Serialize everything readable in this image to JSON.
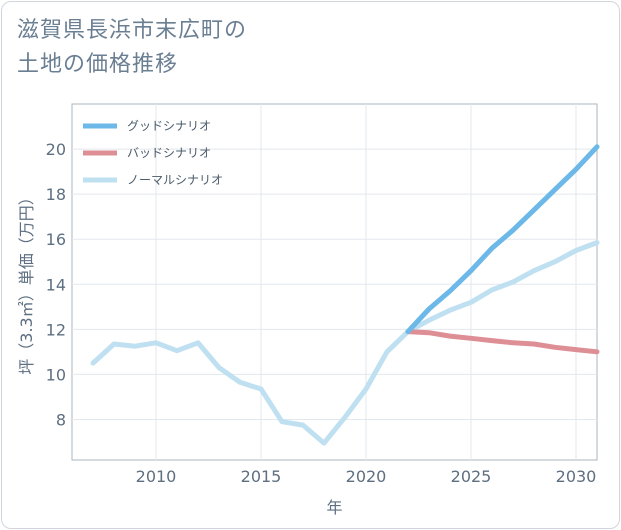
{
  "title_lines": [
    "滋賀県長浜市末広町の",
    "土地の価格推移"
  ],
  "chart_data": {
    "type": "line",
    "xlabel": "年",
    "ylabel": "坪（3.3㎡）単価（万円）",
    "xlim": [
      2006,
      2031
    ],
    "ylim": [
      6.2,
      22
    ],
    "xticks": [
      2010,
      2015,
      2020,
      2025,
      2030
    ],
    "yticks": [
      8,
      10,
      12,
      14,
      16,
      18,
      20
    ],
    "grid": true,
    "legend_position": "top-left",
    "series": [
      {
        "name": "グッドシナリオ",
        "color": "#6cb8e8",
        "x": [
          2022,
          2023,
          2024,
          2025,
          2026,
          2027,
          2028,
          2029,
          2030,
          2031
        ],
        "values": [
          11.9,
          12.9,
          13.7,
          14.6,
          15.6,
          16.4,
          17.3,
          18.2,
          19.1,
          20.1
        ]
      },
      {
        "name": "バッドシナリオ",
        "color": "#dd8f95",
        "x": [
          2022,
          2023,
          2024,
          2025,
          2026,
          2027,
          2028,
          2029,
          2030,
          2031
        ],
        "values": [
          11.9,
          11.85,
          11.7,
          11.6,
          11.5,
          11.4,
          11.35,
          11.2,
          11.1,
          11.0
        ]
      },
      {
        "name": "ノーマルシナリオ",
        "color": "#bfe0f0",
        "x": [
          2007,
          2008,
          2009,
          2010,
          2011,
          2012,
          2013,
          2014,
          2015,
          2016,
          2017,
          2018,
          2019,
          2020,
          2021,
          2022,
          2023,
          2024,
          2025,
          2026,
          2027,
          2028,
          2029,
          2030,
          2031
        ],
        "values": [
          10.5,
          11.35,
          11.25,
          11.4,
          11.05,
          11.4,
          10.3,
          9.65,
          9.35,
          7.9,
          7.75,
          6.95,
          8.1,
          9.35,
          11.0,
          11.9,
          12.4,
          12.85,
          13.2,
          13.75,
          14.1,
          14.6,
          15.0,
          15.5,
          15.85
        ]
      }
    ]
  }
}
